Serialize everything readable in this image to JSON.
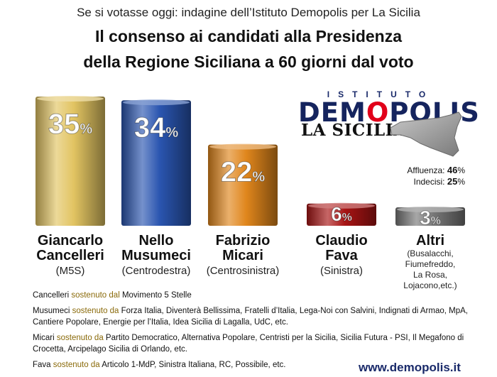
{
  "header": {
    "supertitle": "Se si votasse oggi: indagine dell’Istituto Demopolis per La Sicilia",
    "title_line1": "Il consenso ai candidati alla Presidenza",
    "title_line2": "della Regione Siciliana a 60 giorni dal voto"
  },
  "chart_data": {
    "type": "bar",
    "categories": [
      "Giancarlo Cancelleri",
      "Nello Musumeci",
      "Fabrizio Micari",
      "Claudio Fava",
      "Altri"
    ],
    "values": [
      35,
      34,
      22,
      6,
      3
    ],
    "value_labels": [
      "35",
      "34",
      "22",
      "6",
      "3"
    ],
    "unit": "%",
    "colors": [
      "#e2c462",
      "#2a55b0",
      "#e0861c",
      "#a81414",
      "#777777"
    ]
  },
  "candidates": [
    {
      "first": "Giancarlo",
      "last": "Cancelleri",
      "party": "(M5S)"
    },
    {
      "first": "Nello",
      "last": "Musumeci",
      "party": "(Centrodestra)"
    },
    {
      "first": "Fabrizio",
      "last": "Micari",
      "party": "(Centrosinistra)"
    },
    {
      "first": "Claudio",
      "last": "Fava",
      "party": "(Sinistra)"
    },
    {
      "first": "Altri",
      "last": "",
      "party": "",
      "extra": [
        "(Busalacchi,",
        "Fiumefreddo,",
        "La Rosa,",
        "Lojacono,etc.)"
      ]
    }
  ],
  "logos": {
    "istituto": "ISTITUTO",
    "demo_a": "DEM",
    "demo_o": "O",
    "demo_b": "POLIS",
    "lasicilia": "LA SICILIA"
  },
  "stats": {
    "affluenza_label": "Affluenza:",
    "affluenza_value": "46",
    "indecisi_label": "Indecisi:",
    "indecisi_value": "25",
    "unit": "%"
  },
  "notes": [
    {
      "who": "Cancelleri",
      "verb": " sostenuto dal ",
      "text": "Movimento 5 Stelle"
    },
    {
      "who": "Musumeci",
      "verb": " sostenuto da ",
      "text": "Forza Italia, Diventerà Bellissima, Fratelli d’Italia, Lega-Noi con Salvini, Indignati di Armao, MpA, Cantiere Popolare, Energie per l’Italia, Idea Sicilia di Lagalla, UdC, etc."
    },
    {
      "who": "Micari",
      "verb": " sostenuto da ",
      "text": "Partito Democratico, Alternativa Popolare, Centristi per la Sicilia, Sicilia Futura - PSI, Il Megafono di Crocetta, Arcipelago Sicilia di Orlando, etc."
    },
    {
      "who": "Fava",
      "verb": " sostenuto da ",
      "text": "Articolo 1-MdP, Sinistra Italiana, RC, Possibile, etc."
    }
  ],
  "footer": {
    "url": "www.demopolis.it"
  }
}
